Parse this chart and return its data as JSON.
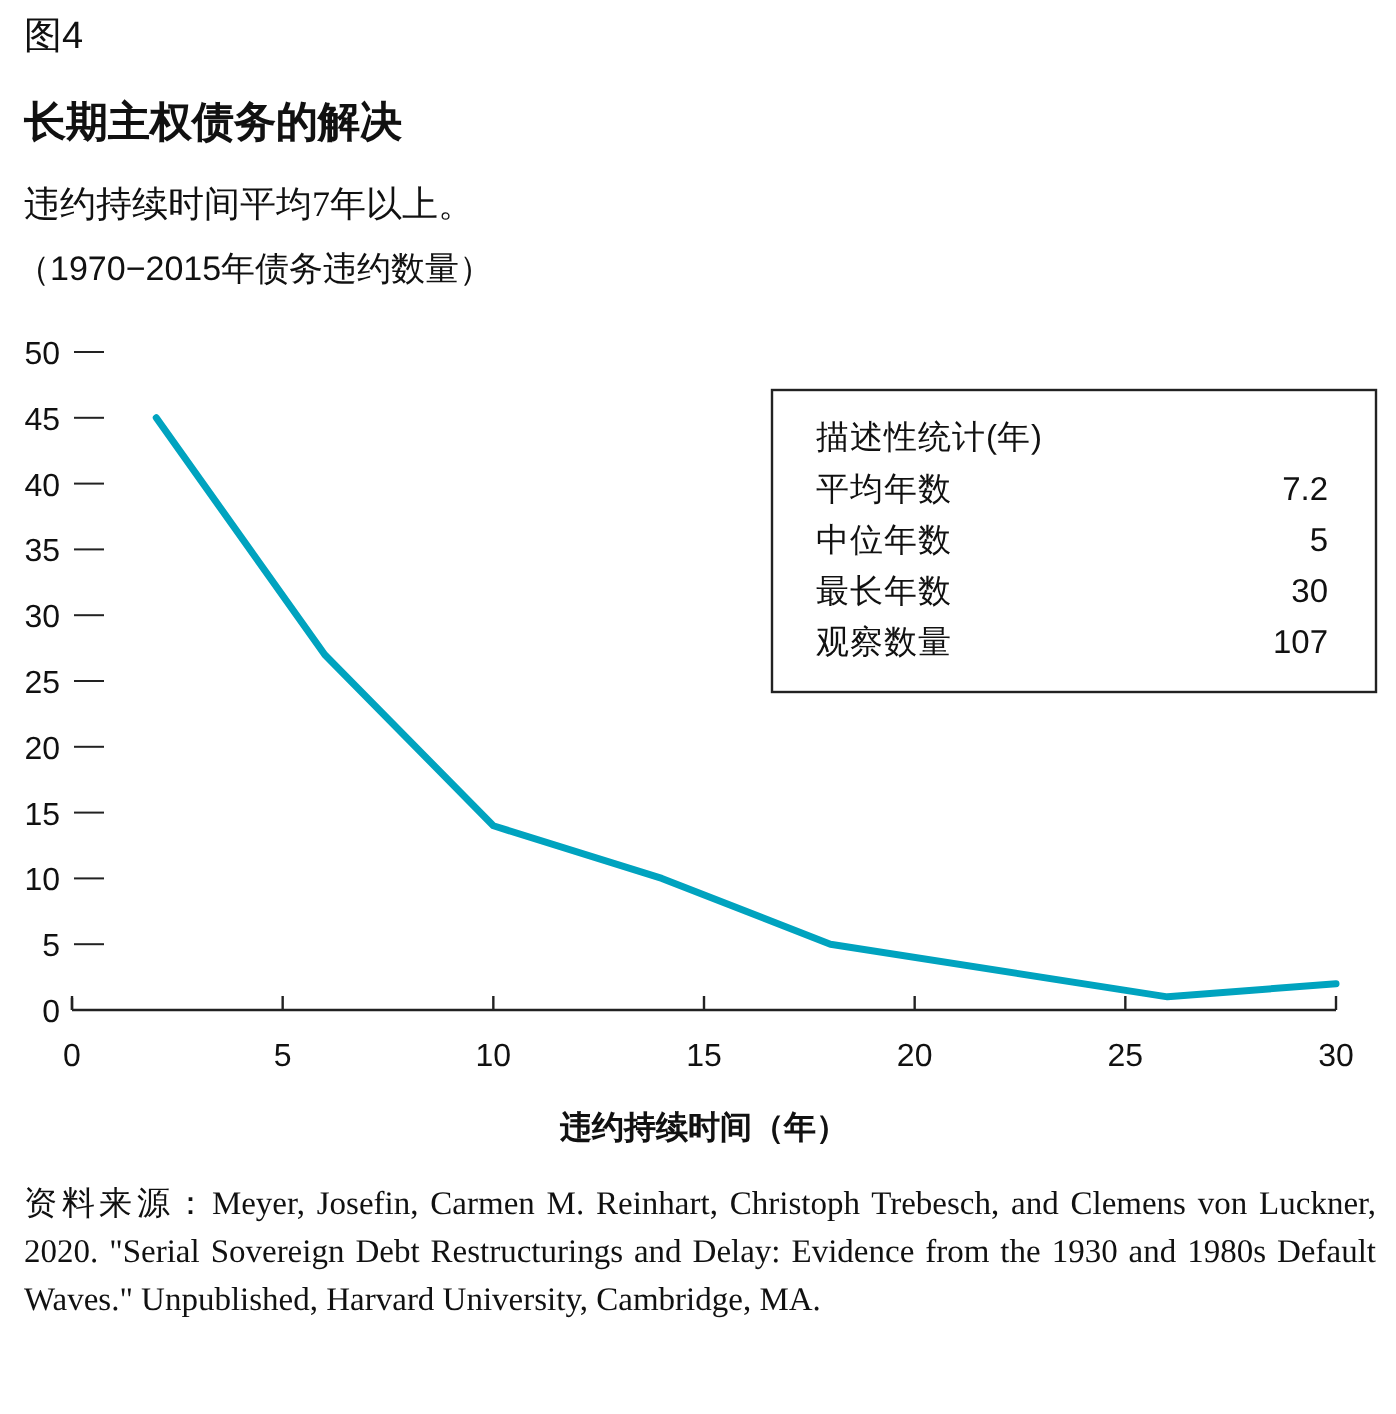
{
  "chart_data": [
    {
      "type": "line",
      "title": "长期主权债务的解决",
      "subtitle": "违约持续时间平均7年以上。",
      "ylabel": "（1970−2015年债务违约数量）",
      "xlabel": "违约持续时间（年）",
      "annotations": [
        "图4",
        "资料来源：Meyer, Josefin, Carmen M. Reinhart, Christoph Trebesch, and Clemens von Luckner, 2020. \"Serial Sovereign Debt Restructurings and Delay: Evidence from the 1930 and 1980s Default Waves.\" Unpublished, Harvard University, Cambridge, MA."
      ],
      "x": [
        2,
        6,
        10,
        14,
        18,
        26,
        30
      ],
      "series": [
        {
          "color": "#00a3bf",
          "values": [
            45,
            27,
            14,
            10,
            5,
            1,
            2
          ]
        }
      ],
      "xlim": [
        0,
        30
      ],
      "xticks": [
        0,
        5,
        10,
        15,
        20,
        25,
        30
      ],
      "ylim": [
        0,
        50
      ],
      "yticks": [
        0,
        5,
        10,
        15,
        20,
        25,
        30,
        35,
        40,
        45,
        50
      ],
      "grid": false,
      "marker": "none",
      "line_style": "solid"
    },
    {
      "type": "other",
      "title": "描述性统计(年)",
      "categories": [
        "平均年数",
        "中位年数",
        "最长年数",
        "观察数量"
      ],
      "values": [
        7.2,
        5,
        30,
        107
      ],
      "data_labels": true
    }
  ]
}
